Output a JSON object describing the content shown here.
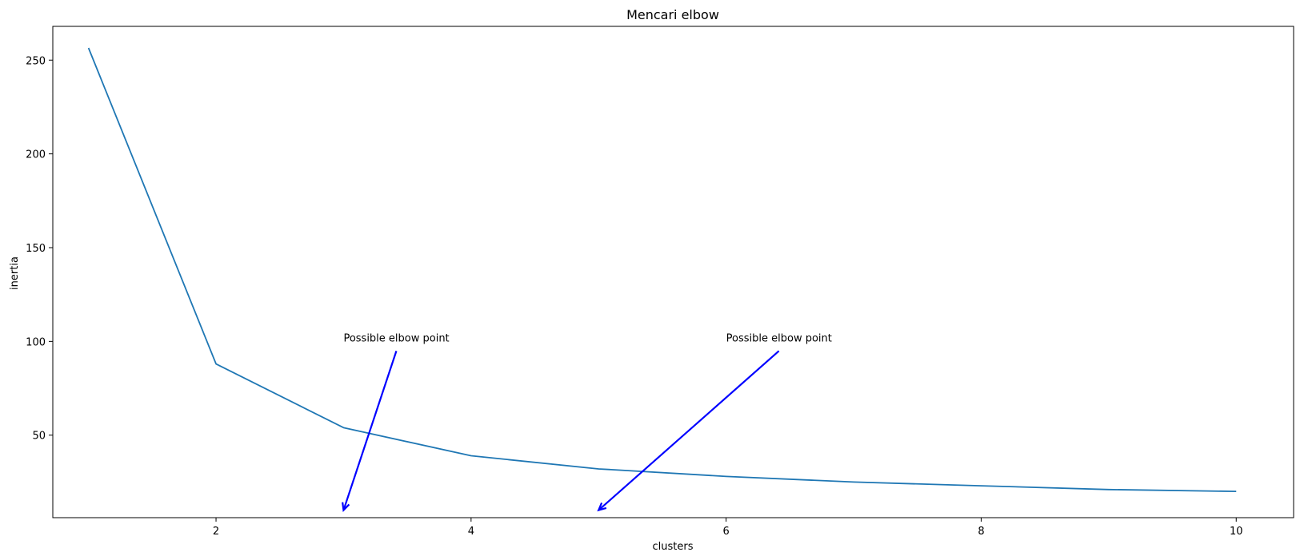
{
  "chart_data": {
    "type": "line",
    "title": "Mencari elbow",
    "xlabel": "clusters",
    "ylabel": "inertia",
    "xlim": [
      0.72,
      10.45
    ],
    "ylim": [
      6,
      268
    ],
    "xticks": [
      2,
      4,
      6,
      8,
      10
    ],
    "yticks": [
      50,
      100,
      150,
      200,
      250
    ],
    "grid": false,
    "series": [
      {
        "color": "#1f77b4",
        "x": [
          1,
          2,
          3,
          4,
          5,
          6,
          7,
          8,
          9,
          10
        ],
        "y": [
          256.5,
          88.0,
          54.0,
          39.0,
          32.0,
          28.0,
          25.0,
          23.0,
          21.0,
          20.0
        ]
      }
    ],
    "annotations": [
      {
        "text": "Possible elbow point",
        "text_xy": [
          3,
          100
        ],
        "arrow_to": [
          3,
          10
        ],
        "color": "#0000ff"
      },
      {
        "text": "Possible elbow point",
        "text_xy": [
          6,
          100
        ],
        "arrow_to": [
          5,
          10
        ],
        "color": "#0000ff"
      }
    ]
  }
}
